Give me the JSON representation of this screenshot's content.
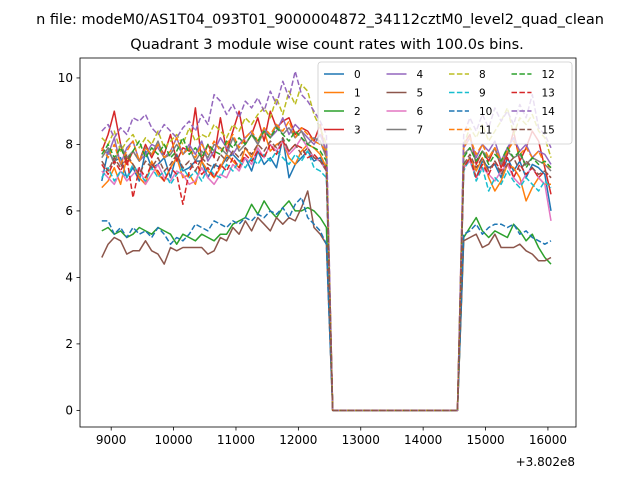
{
  "figure": {
    "suptitle": "n file: modeM0/AS1T04_093T01_9000004872_34112cztM0_level2_quad_clean"
  },
  "chart_data": {
    "type": "line",
    "title": "Quadrant 3 module wise count rates with 100.0s bins.",
    "xlabel": "",
    "ylabel": "",
    "x_offset_label": "+3.802e8",
    "xlim": [
      8500,
      16450
    ],
    "ylim": [
      -0.5,
      10.6
    ],
    "xticks": [
      9000,
      10000,
      11000,
      12000,
      13000,
      14000,
      15000,
      16000
    ],
    "yticks": [
      0,
      2,
      4,
      6,
      8,
      10
    ],
    "legend": {
      "placement": "top-right",
      "columns": 4
    },
    "grid": false,
    "segments": [
      {
        "x_start": 8850,
        "x_end": 12450,
        "step": 100
      },
      {
        "x_start": 14650,
        "x_end": 16150,
        "step": 100
      }
    ],
    "gap": {
      "x": [
        12550,
        14550
      ],
      "value": 0
    },
    "series": [
      {
        "name": "0",
        "color": "#1f77b4",
        "dash": "solid",
        "values": [
          6.9,
          7.8,
          7.5,
          7.6,
          7.0,
          7.3,
          6.9,
          7.8,
          7.3,
          7.4,
          7.6,
          7.0,
          7.7,
          7.2,
          7.3,
          7.5,
          7.5,
          7.0,
          7.4,
          7.3,
          7.6,
          7.7,
          7.5,
          7.6,
          7.2,
          7.8,
          7.4,
          7.6,
          7.3,
          8.2,
          7.0,
          7.4,
          7.6,
          7.8,
          7.5,
          7.6,
          7.2,
          0.0,
          7.3,
          7.6,
          7.0,
          7.5,
          7.3,
          7.4,
          7.0,
          7.6,
          7.2,
          7.5,
          7.0,
          7.4,
          7.3,
          7.1,
          6.0
        ]
      },
      {
        "name": "1",
        "color": "#ff7f0e",
        "dash": "solid",
        "values": [
          6.7,
          6.9,
          7.3,
          6.8,
          7.6,
          7.4,
          7.0,
          6.8,
          7.5,
          7.1,
          6.9,
          7.3,
          7.6,
          7.0,
          7.1,
          6.8,
          7.5,
          7.2,
          7.0,
          7.3,
          7.7,
          7.5,
          7.3,
          7.9,
          7.6,
          8.0,
          8.4,
          7.8,
          8.0,
          8.1,
          7.6,
          7.4,
          7.8,
          8.0,
          7.9,
          7.7,
          7.3,
          0.0,
          7.3,
          7.6,
          7.2,
          7.6,
          7.0,
          6.6,
          6.9,
          7.4,
          7.3,
          7.0,
          6.3,
          6.7,
          7.0,
          6.8,
          6.8
        ]
      },
      {
        "name": "2",
        "color": "#2ca02c",
        "dash": "solid",
        "values": [
          5.4,
          5.5,
          5.3,
          5.4,
          5.2,
          5.3,
          5.5,
          5.4,
          5.3,
          5.5,
          5.4,
          5.3,
          5.0,
          5.3,
          5.2,
          5.1,
          5.3,
          5.2,
          5.1,
          5.3,
          5.3,
          5.6,
          5.7,
          5.8,
          6.2,
          5.9,
          6.3,
          6.0,
          5.8,
          6.1,
          6.3,
          6.0,
          6.0,
          6.1,
          6.0,
          5.8,
          5.5,
          0.0,
          5.2,
          5.5,
          5.8,
          5.4,
          5.2,
          5.4,
          5.3,
          5.2,
          5.6,
          5.4,
          5.1,
          5.3,
          4.9,
          4.6,
          4.4
        ]
      },
      {
        "name": "3",
        "color": "#d62728",
        "dash": "solid",
        "values": [
          7.8,
          8.3,
          9.0,
          8.0,
          7.4,
          7.8,
          7.5,
          8.0,
          7.6,
          8.0,
          7.7,
          8.3,
          7.5,
          7.9,
          7.8,
          9.1,
          7.5,
          8.0,
          7.6,
          8.8,
          7.8,
          8.4,
          9.0,
          8.0,
          8.3,
          8.8,
          8.1,
          9.0,
          8.5,
          8.7,
          8.8,
          8.3,
          8.5,
          8.4,
          8.1,
          8.6,
          7.6,
          0.0,
          8.0,
          8.3,
          7.4,
          7.8,
          7.5,
          7.9,
          7.3,
          7.7,
          8.4,
          7.5,
          7.9,
          8.4,
          8.1,
          7.3,
          6.5
        ]
      },
      {
        "name": "4",
        "color": "#9467bd",
        "dash": "solid",
        "values": [
          7.9,
          7.7,
          8.2,
          7.4,
          7.9,
          8.1,
          7.5,
          7.7,
          8.0,
          7.9,
          7.6,
          7.8,
          8.2,
          7.7,
          8.0,
          7.7,
          8.1,
          7.5,
          7.8,
          8.2,
          7.9,
          7.7,
          8.0,
          8.2,
          8.4,
          8.0,
          8.5,
          8.2,
          8.4,
          8.8,
          8.3,
          8.6,
          8.4,
          8.2,
          8.0,
          8.3,
          7.8,
          0.0,
          7.9,
          8.2,
          7.6,
          8.0,
          7.8,
          8.1,
          7.5,
          7.9,
          8.2,
          7.8,
          8.0,
          7.6,
          7.8,
          7.7,
          7.4
        ]
      },
      {
        "name": "5",
        "color": "#8c564b",
        "dash": "solid",
        "values": [
          4.6,
          5.0,
          5.2,
          5.1,
          4.7,
          4.8,
          4.8,
          5.1,
          4.8,
          4.7,
          4.4,
          4.9,
          4.8,
          4.9,
          4.9,
          4.9,
          4.9,
          4.7,
          4.8,
          5.2,
          5.1,
          5.5,
          5.3,
          5.7,
          5.4,
          5.8,
          5.6,
          5.4,
          5.8,
          5.6,
          5.8,
          5.7,
          6.1,
          6.6,
          5.5,
          5.3,
          5.0,
          0.0,
          5.1,
          5.2,
          5.3,
          4.9,
          5.0,
          5.3,
          4.9,
          4.9,
          4.9,
          5.0,
          4.8,
          4.7,
          4.5,
          4.5,
          4.6
        ]
      },
      {
        "name": "6",
        "color": "#e377c2",
        "dash": "solid",
        "values": [
          7.2,
          7.0,
          6.8,
          7.2,
          6.9,
          7.1,
          7.3,
          6.8,
          7.1,
          7.4,
          7.0,
          6.9,
          7.2,
          7.1,
          6.8,
          6.9,
          7.3,
          7.0,
          6.8,
          7.1,
          7.0,
          7.4,
          7.2,
          7.6,
          7.4,
          7.9,
          7.6,
          8.0,
          7.8,
          8.1,
          7.7,
          7.9,
          8.2,
          7.9,
          7.6,
          7.5,
          7.2,
          0.0,
          7.3,
          7.5,
          7.0,
          7.3,
          7.1,
          6.9,
          7.2,
          7.4,
          7.0,
          6.8,
          7.1,
          7.3,
          7.0,
          6.8,
          5.7
        ]
      },
      {
        "name": "7",
        "color": "#7f7f7f",
        "dash": "solid",
        "values": [
          7.6,
          7.9,
          7.4,
          8.0,
          7.6,
          7.8,
          7.5,
          7.9,
          7.7,
          8.1,
          7.6,
          7.7,
          8.0,
          7.7,
          7.9,
          7.5,
          7.8,
          7.6,
          8.0,
          7.9,
          7.7,
          8.2,
          7.8,
          8.0,
          8.3,
          8.0,
          8.4,
          8.2,
          8.6,
          8.3,
          8.5,
          8.2,
          8.4,
          8.0,
          8.2,
          8.1,
          7.6,
          0.0,
          7.7,
          7.9,
          7.5,
          7.8,
          7.6,
          7.9,
          7.4,
          7.8,
          7.6,
          7.7,
          7.4,
          7.6,
          7.5,
          7.4,
          7.2
        ]
      },
      {
        "name": "8",
        "color": "#bcbd22",
        "dash": "dashed",
        "values": [
          8.2,
          8.0,
          8.4,
          7.8,
          8.1,
          8.3,
          7.9,
          8.2,
          8.0,
          8.4,
          7.9,
          8.1,
          8.3,
          8.0,
          8.5,
          8.1,
          8.3,
          8.2,
          8.6,
          8.4,
          8.2,
          8.6,
          8.4,
          8.8,
          8.6,
          8.9,
          9.1,
          8.8,
          9.4,
          8.9,
          9.6,
          9.2,
          9.8,
          9.6,
          8.9,
          8.5,
          8.0,
          0.0,
          8.0,
          8.5,
          8.2,
          8.6,
          8.1,
          8.4,
          8.7,
          9.1,
          8.3,
          8.8,
          8.6,
          8.9,
          8.4,
          8.2,
          7.6
        ]
      },
      {
        "name": "9",
        "color": "#17becf",
        "dash": "dashed",
        "values": [
          7.0,
          7.3,
          6.9,
          7.2,
          7.0,
          7.4,
          7.1,
          6.9,
          7.3,
          7.0,
          7.2,
          6.8,
          7.1,
          7.3,
          7.0,
          7.2,
          6.9,
          7.3,
          7.1,
          7.0,
          7.4,
          7.2,
          7.5,
          7.3,
          7.6,
          7.4,
          7.7,
          7.5,
          7.8,
          7.6,
          7.4,
          7.7,
          7.5,
          7.8,
          7.3,
          7.2,
          7.0,
          0.0,
          7.2,
          7.6,
          6.9,
          7.3,
          6.6,
          7.0,
          6.8,
          7.2,
          6.9,
          6.7,
          7.0,
          6.8,
          6.6,
          6.9,
          6.7
        ]
      },
      {
        "name": "10",
        "color": "#1f77b4",
        "dash": "dashed",
        "values": [
          5.7,
          5.7,
          5.3,
          5.5,
          5.2,
          5.5,
          5.3,
          5.4,
          5.2,
          5.5,
          5.3,
          5.0,
          5.2,
          5.1,
          5.3,
          5.6,
          5.5,
          5.4,
          5.7,
          5.6,
          5.5,
          5.7,
          5.6,
          5.8,
          5.7,
          5.9,
          5.8,
          6.0,
          5.9,
          6.1,
          5.8,
          6.2,
          6.4,
          5.8,
          5.6,
          5.4,
          5.0,
          0.0,
          5.3,
          5.4,
          5.6,
          5.3,
          5.5,
          5.6,
          5.6,
          5.5,
          5.6,
          5.3,
          5.4,
          5.2,
          5.1,
          5.0,
          5.1
        ]
      },
      {
        "name": "11",
        "color": "#ff7f0e",
        "dash": "dashed",
        "values": [
          7.9,
          7.6,
          8.0,
          7.4,
          7.8,
          8.1,
          7.5,
          7.9,
          7.7,
          8.0,
          7.6,
          7.8,
          8.2,
          7.7,
          7.9,
          7.6,
          8.0,
          7.7,
          8.1,
          7.8,
          8.0,
          8.3,
          7.9,
          8.2,
          8.4,
          8.1,
          8.5,
          8.3,
          8.6,
          8.4,
          8.7,
          8.2,
          8.5,
          8.3,
          8.1,
          8.0,
          7.8,
          0.0,
          7.9,
          8.2,
          7.7,
          8.0,
          7.6,
          7.9,
          7.5,
          7.8,
          8.1,
          7.7,
          7.9,
          7.6,
          7.8,
          7.4,
          7.3
        ]
      },
      {
        "name": "12",
        "color": "#2ca02c",
        "dash": "dashed",
        "values": [
          7.7,
          8.0,
          7.6,
          7.9,
          7.5,
          7.8,
          8.1,
          7.6,
          7.9,
          7.7,
          8.0,
          7.6,
          7.8,
          8.2,
          7.7,
          7.9,
          7.6,
          8.0,
          7.8,
          7.7,
          8.1,
          7.9,
          8.2,
          8.0,
          8.3,
          8.1,
          8.4,
          8.2,
          8.5,
          8.3,
          8.1,
          8.4,
          8.2,
          8.0,
          7.9,
          7.8,
          7.5,
          0.0,
          7.6,
          7.9,
          7.5,
          7.8,
          7.4,
          7.7,
          7.5,
          7.9,
          7.6,
          7.8,
          7.3,
          7.6,
          7.4,
          7.5,
          7.3
        ]
      },
      {
        "name": "13",
        "color": "#d62728",
        "dash": "dashed",
        "values": [
          7.4,
          7.1,
          7.5,
          7.2,
          7.6,
          6.4,
          7.3,
          7.0,
          7.4,
          7.2,
          6.9,
          7.3,
          7.1,
          6.2,
          7.2,
          7.5,
          7.1,
          7.3,
          7.0,
          7.4,
          7.2,
          7.6,
          7.3,
          7.7,
          7.5,
          7.8,
          7.6,
          8.0,
          7.7,
          8.1,
          7.8,
          8.0,
          7.9,
          7.6,
          7.7,
          7.5,
          7.3,
          0.0,
          7.3,
          7.6,
          7.0,
          7.4,
          7.1,
          7.5,
          7.2,
          7.6,
          7.0,
          7.4,
          7.1,
          7.3,
          7.0,
          7.2,
          7.0
        ]
      },
      {
        "name": "14",
        "color": "#9467bd",
        "dash": "dashed",
        "values": [
          8.4,
          8.6,
          8.2,
          8.5,
          8.3,
          8.8,
          8.7,
          8.9,
          8.5,
          8.3,
          8.6,
          8.4,
          8.2,
          8.5,
          8.7,
          8.4,
          8.9,
          8.6,
          9.5,
          9.3,
          8.9,
          9.2,
          8.8,
          9.3,
          9.1,
          9.4,
          9.0,
          9.6,
          9.2,
          9.9,
          9.4,
          10.2,
          9.5,
          9.3,
          9.0,
          8.7,
          8.3,
          0.0,
          8.3,
          8.8,
          8.4,
          8.9,
          8.5,
          9.1,
          8.7,
          9.0,
          8.6,
          9.2,
          8.8,
          9.5,
          8.5,
          8.3,
          7.9
        ]
      },
      {
        "name": "15",
        "color": "#8c564b",
        "dash": "dashed",
        "values": [
          7.5,
          7.2,
          7.6,
          7.3,
          7.7,
          7.4,
          7.1,
          7.5,
          7.3,
          7.6,
          7.2,
          7.4,
          7.7,
          7.3,
          7.5,
          7.2,
          7.6,
          7.4,
          7.3,
          7.7,
          7.5,
          7.8,
          7.6,
          7.9,
          7.7,
          8.0,
          7.8,
          8.1,
          7.9,
          8.2,
          7.8,
          8.0,
          7.7,
          7.9,
          7.6,
          7.5,
          7.2,
          0.0,
          7.4,
          7.7,
          7.3,
          7.6,
          7.2,
          7.5,
          7.1,
          7.4,
          7.6,
          7.2,
          7.5,
          7.3,
          7.1,
          7.2,
          7.0
        ]
      }
    ]
  }
}
